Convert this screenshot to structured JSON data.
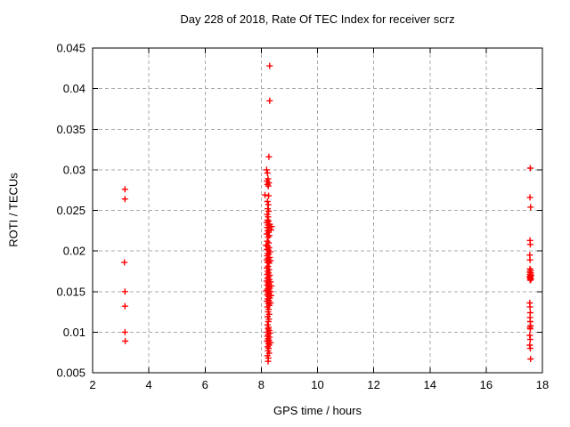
{
  "chart_data": {
    "type": "scatter",
    "title": "Day 228 of 2018, Rate Of TEC Index for receiver scrz",
    "xlabel": "GPS time / hours",
    "ylabel": "ROTI / TECUs",
    "xlim": [
      2,
      18
    ],
    "ylim": [
      0.005,
      0.045
    ],
    "xticks": [
      2,
      4,
      6,
      8,
      10,
      12,
      14,
      16,
      18
    ],
    "xtick_labels": [
      "2",
      "4",
      "6",
      "8",
      "10",
      "12",
      "14",
      "16",
      "18"
    ],
    "yticks": [
      0.005,
      0.01,
      0.015,
      0.02,
      0.025,
      0.03,
      0.035,
      0.04,
      0.045
    ],
    "ytick_labels": [
      "0.005",
      "0.01",
      "0.015",
      "0.02",
      "0.025",
      "0.03",
      "0.035",
      "0.04",
      "0.045"
    ],
    "grid": true,
    "legend_position": "none",
    "marker": {
      "shape": "plus",
      "color": "#ff0000",
      "size": 7
    },
    "colors": {
      "marker": "#ff0000",
      "grid": "#a9a9a9",
      "border": "#000000",
      "text": "#000000",
      "background": "#ffffff"
    },
    "points": [
      [
        3.15,
        0.0276
      ],
      [
        3.15,
        0.0264
      ],
      [
        3.13,
        0.0186
      ],
      [
        3.15,
        0.015
      ],
      [
        3.15,
        0.0132
      ],
      [
        3.15,
        0.01
      ],
      [
        3.16,
        0.0089
      ],
      [
        8.3,
        0.0428
      ],
      [
        8.3,
        0.0385
      ],
      [
        8.27,
        0.0316
      ],
      [
        8.19,
        0.03
      ],
      [
        8.22,
        0.0296
      ],
      [
        8.24,
        0.0289
      ],
      [
        8.2,
        0.0286
      ],
      [
        8.27,
        0.0284
      ],
      [
        8.22,
        0.0282
      ],
      [
        8.25,
        0.028
      ],
      [
        8.13,
        0.0269
      ],
      [
        8.26,
        0.0268
      ],
      [
        8.22,
        0.0261
      ],
      [
        8.25,
        0.0257
      ],
      [
        8.23,
        0.0252
      ],
      [
        8.26,
        0.0249
      ],
      [
        8.21,
        0.0245
      ],
      [
        8.24,
        0.0242
      ],
      [
        8.22,
        0.0238
      ],
      [
        8.26,
        0.0237
      ],
      [
        8.19,
        0.0235
      ],
      [
        8.3,
        0.0233
      ],
      [
        8.24,
        0.0232
      ],
      [
        8.37,
        0.023
      ],
      [
        8.21,
        0.0229
      ],
      [
        8.28,
        0.0228
      ],
      [
        8.35,
        0.0226
      ],
      [
        8.23,
        0.0225
      ],
      [
        8.26,
        0.0223
      ],
      [
        8.2,
        0.0221
      ],
      [
        8.29,
        0.0219
      ],
      [
        8.24,
        0.0217
      ],
      [
        8.21,
        0.0212
      ],
      [
        8.26,
        0.021
      ],
      [
        8.17,
        0.0207
      ],
      [
        8.23,
        0.0206
      ],
      [
        8.28,
        0.0204
      ],
      [
        8.2,
        0.0202
      ],
      [
        8.25,
        0.0201
      ],
      [
        8.31,
        0.0199
      ],
      [
        8.23,
        0.0197
      ],
      [
        8.27,
        0.0196
      ],
      [
        8.21,
        0.0194
      ],
      [
        8.3,
        0.0192
      ],
      [
        8.24,
        0.0191
      ],
      [
        8.19,
        0.0189
      ],
      [
        8.33,
        0.0188
      ],
      [
        8.26,
        0.0187
      ],
      [
        8.22,
        0.0186
      ],
      [
        8.28,
        0.0185
      ],
      [
        8.24,
        0.0181
      ],
      [
        8.2,
        0.0179
      ],
      [
        8.28,
        0.0177
      ],
      [
        8.23,
        0.0175
      ],
      [
        8.26,
        0.0173
      ],
      [
        8.21,
        0.0171
      ],
      [
        8.3,
        0.017
      ],
      [
        8.25,
        0.0168
      ],
      [
        8.22,
        0.0166
      ],
      [
        8.29,
        0.0165
      ],
      [
        8.19,
        0.0163
      ],
      [
        8.33,
        0.0162
      ],
      [
        8.24,
        0.0161
      ],
      [
        8.27,
        0.0159
      ],
      [
        8.21,
        0.0158
      ],
      [
        8.36,
        0.0157
      ],
      [
        8.25,
        0.0156
      ],
      [
        8.3,
        0.0154
      ],
      [
        8.22,
        0.0153
      ],
      [
        8.27,
        0.0152
      ],
      [
        8.18,
        0.0151
      ],
      [
        8.32,
        0.015
      ],
      [
        8.24,
        0.0149
      ],
      [
        8.28,
        0.0147
      ],
      [
        8.21,
        0.0146
      ],
      [
        8.35,
        0.0145
      ],
      [
        8.25,
        0.0144
      ],
      [
        8.3,
        0.0142
      ],
      [
        8.23,
        0.0141
      ],
      [
        8.27,
        0.0139
      ],
      [
        8.2,
        0.0138
      ],
      [
        8.33,
        0.0136
      ],
      [
        8.25,
        0.0135
      ],
      [
        8.29,
        0.0133
      ],
      [
        8.22,
        0.0131
      ],
      [
        8.26,
        0.0128
      ],
      [
        8.24,
        0.0125
      ],
      [
        8.28,
        0.0122
      ],
      [
        8.23,
        0.0119
      ],
      [
        8.27,
        0.0116
      ],
      [
        8.25,
        0.0113
      ],
      [
        8.22,
        0.0109
      ],
      [
        8.26,
        0.0106
      ],
      [
        8.24,
        0.0104
      ],
      [
        8.28,
        0.0102
      ],
      [
        8.21,
        0.01
      ],
      [
        8.31,
        0.0099
      ],
      [
        8.25,
        0.0097
      ],
      [
        8.22,
        0.0095
      ],
      [
        8.29,
        0.0094
      ],
      [
        8.24,
        0.0092
      ],
      [
        8.27,
        0.009
      ],
      [
        8.2,
        0.0089
      ],
      [
        8.33,
        0.0087
      ],
      [
        8.25,
        0.0086
      ],
      [
        8.28,
        0.0084
      ],
      [
        8.23,
        0.0082
      ],
      [
        8.26,
        0.008
      ],
      [
        8.24,
        0.0077
      ],
      [
        8.28,
        0.0074
      ],
      [
        8.22,
        0.0071
      ],
      [
        8.25,
        0.0068
      ],
      [
        8.24,
        0.0064
      ],
      [
        17.57,
        0.0302
      ],
      [
        17.56,
        0.0266
      ],
      [
        17.58,
        0.0254
      ],
      [
        17.56,
        0.0213
      ],
      [
        17.57,
        0.0208
      ],
      [
        17.55,
        0.0195
      ],
      [
        17.56,
        0.0189
      ],
      [
        17.56,
        0.0178
      ],
      [
        17.58,
        0.0176
      ],
      [
        17.55,
        0.0174
      ],
      [
        17.59,
        0.0173
      ],
      [
        17.56,
        0.0171
      ],
      [
        17.6,
        0.017
      ],
      [
        17.57,
        0.0169
      ],
      [
        17.55,
        0.0168
      ],
      [
        17.58,
        0.0167
      ],
      [
        17.56,
        0.0166
      ],
      [
        17.59,
        0.0165
      ],
      [
        17.57,
        0.0164
      ],
      [
        17.55,
        0.0136
      ],
      [
        17.56,
        0.0131
      ],
      [
        17.57,
        0.0124
      ],
      [
        17.56,
        0.0118
      ],
      [
        17.57,
        0.0113
      ],
      [
        17.58,
        0.0108
      ],
      [
        17.56,
        0.0106
      ],
      [
        17.57,
        0.0104
      ],
      [
        17.55,
        0.0096
      ],
      [
        17.57,
        0.0091
      ],
      [
        17.55,
        0.0084
      ],
      [
        17.57,
        0.008
      ],
      [
        17.58,
        0.0067
      ]
    ]
  }
}
